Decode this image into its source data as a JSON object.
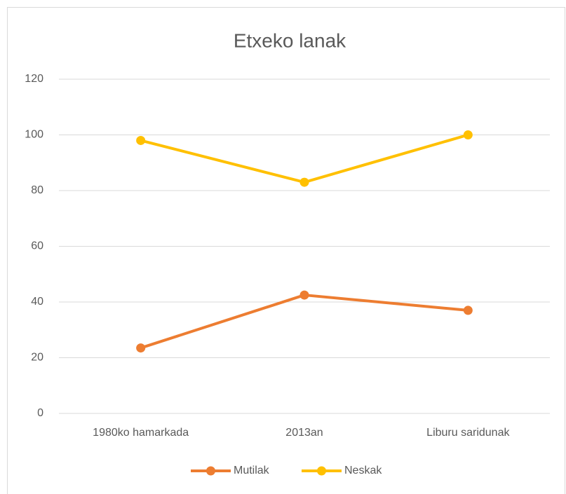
{
  "chart_data": {
    "type": "line",
    "title": "Etxeko lanak",
    "categories": [
      "1980ko hamarkada",
      "2013an",
      "Liburu saridunak"
    ],
    "series": [
      {
        "name": "Mutilak",
        "color": "#ED7D31",
        "values": [
          23.5,
          42.5,
          37
        ]
      },
      {
        "name": "Neskak",
        "color": "#FFC000",
        "values": [
          98,
          83,
          100
        ]
      }
    ],
    "ylim": [
      0,
      120
    ],
    "yticks": [
      0,
      20,
      40,
      60,
      80,
      100,
      120
    ],
    "grid": true,
    "legend": "bottom"
  }
}
